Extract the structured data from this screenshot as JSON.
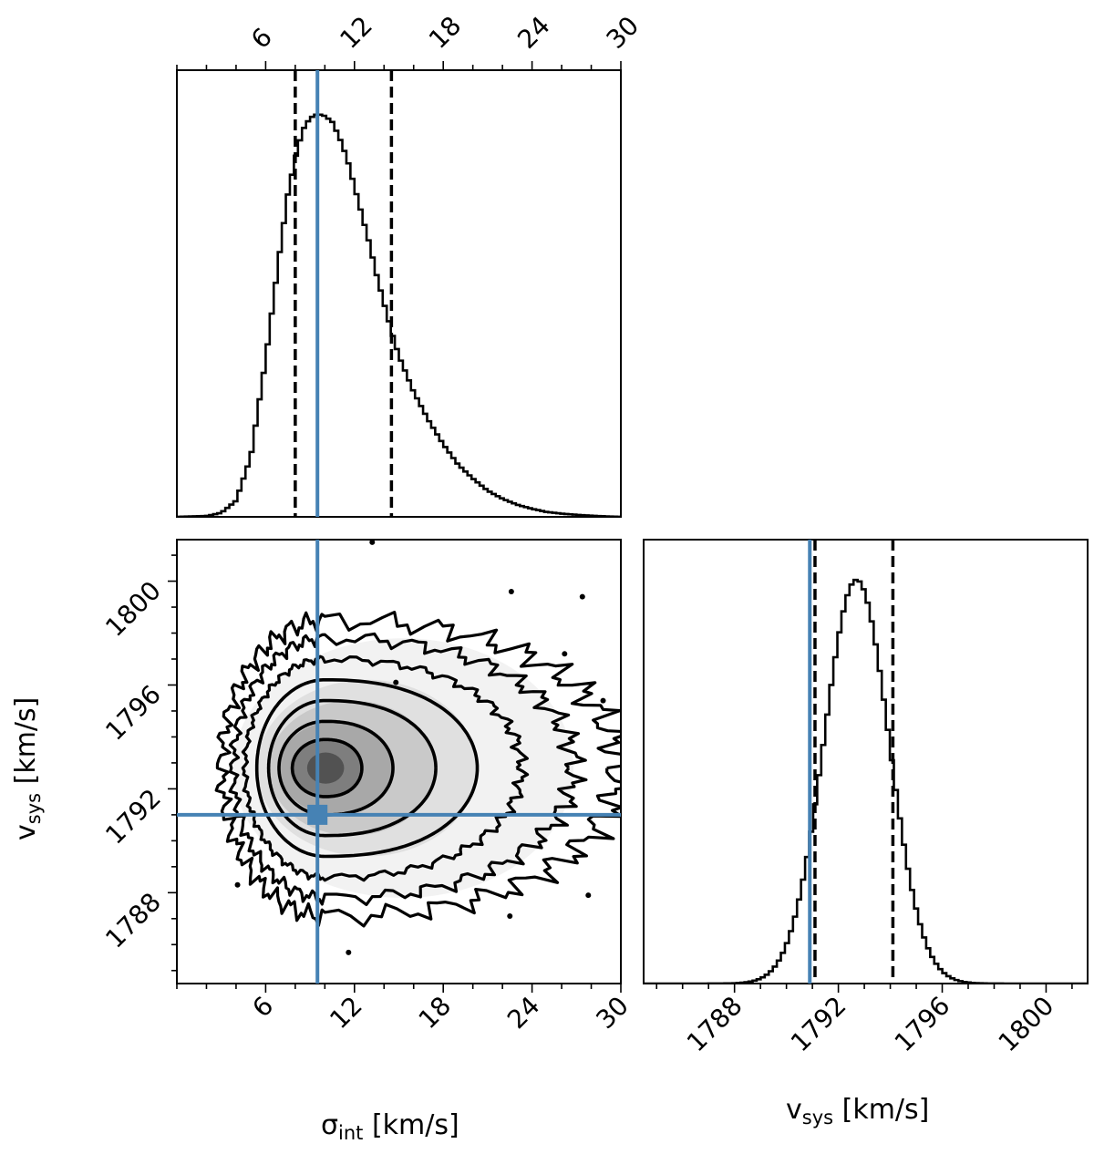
{
  "chart_data": [
    {
      "type": "histogram",
      "panel": "top-left",
      "xlim": [
        0,
        30
      ],
      "xticks": [
        6,
        12,
        18,
        24,
        30
      ],
      "xtick_position": "top",
      "peak_x": 10.4,
      "quantiles_dashed": [
        8.0,
        14.5
      ],
      "truth_line": 9.5,
      "density_profile": {
        "x": [
          0,
          2,
          3,
          4,
          5,
          6,
          6.5,
          7,
          7.5,
          8,
          8.5,
          9,
          9.5,
          10,
          10.5,
          11,
          11.5,
          12,
          12.5,
          13,
          13.5,
          14,
          14.5,
          15,
          16,
          17,
          18,
          19,
          20,
          21,
          22,
          23,
          24,
          25,
          26,
          27,
          28,
          29,
          30
        ],
        "y": [
          0,
          0.002,
          0.01,
          0.04,
          0.15,
          0.39,
          0.53,
          0.67,
          0.8,
          0.89,
          0.96,
          0.99,
          1.0,
          0.995,
          0.98,
          0.94,
          0.89,
          0.82,
          0.75,
          0.68,
          0.6,
          0.53,
          0.46,
          0.4,
          0.31,
          0.24,
          0.18,
          0.13,
          0.095,
          0.065,
          0.045,
          0.03,
          0.02,
          0.012,
          0.008,
          0.005,
          0.003,
          0.001,
          0
        ]
      }
    },
    {
      "type": "contour",
      "panel": "bottom-left",
      "xlim": [
        0,
        30
      ],
      "ylim": [
        1784.5,
        1801.6
      ],
      "xticks": [
        6,
        12,
        18,
        24,
        30
      ],
      "yticks": [
        1788,
        1792,
        1796,
        1800
      ],
      "xlabel": "σint [km/s]",
      "ylabel": "vsys [km/s]",
      "peak": [
        10.0,
        1792.8
      ],
      "truth_point": [
        9.5,
        1791.0
      ],
      "contours": [
        {
          "x_min": 7.8,
          "x_max": 12.5,
          "y_half": 1.1
        },
        {
          "x_min": 6.9,
          "x_max": 14.6,
          "y_half": 1.8
        },
        {
          "x_min": 6.2,
          "x_max": 17.5,
          "y_half": 2.6
        },
        {
          "x_min": 5.4,
          "x_max": 20.3,
          "y_half": 3.4
        },
        {
          "x_min": 4.6,
          "x_max": 23.3,
          "y_half": 4.2
        },
        {
          "x_min": 3.8,
          "x_max": 26.8,
          "y_half": 5.0
        },
        {
          "x_min": 3.0,
          "x_max": 29.8,
          "y_half": 5.7
        }
      ],
      "outliers": [
        [
          13.2,
          1801.5
        ],
        [
          22.6,
          1799.6
        ],
        [
          27.4,
          1799.4
        ],
        [
          14.8,
          1796.1
        ],
        [
          26.2,
          1797.2
        ],
        [
          28.8,
          1795.4
        ],
        [
          11.6,
          1785.7
        ],
        [
          22.5,
          1787.1
        ],
        [
          4.1,
          1788.3
        ],
        [
          27.8,
          1787.9
        ]
      ]
    },
    {
      "type": "histogram",
      "panel": "bottom-right",
      "xlim": [
        1784.5,
        1801.6
      ],
      "xticks": [
        1788,
        1792,
        1796,
        1800
      ],
      "xlabel": "vsys [km/s]",
      "mean": 1792.7,
      "sigma": 1.25,
      "quantiles_dashed": [
        1791.1,
        1794.1
      ],
      "truth_line": 1790.9
    }
  ],
  "colors": {
    "truth": "#4682b4",
    "line": "#000000",
    "density": "#000000"
  }
}
